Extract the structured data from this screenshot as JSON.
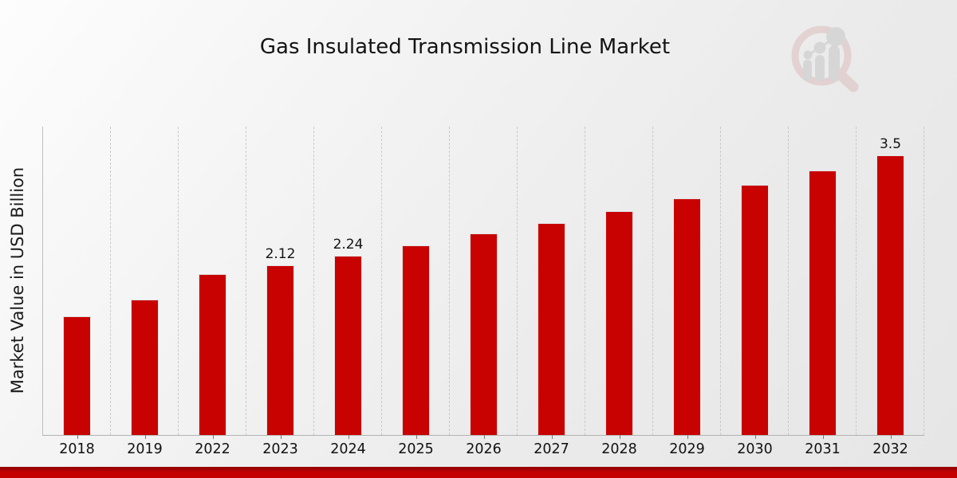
{
  "page": {
    "background_start": "#fdfdfd",
    "background_end": "#e6e6e6"
  },
  "branding": {
    "logo_name": "magnifier-growth-chart-watermark",
    "ring_color": "#ddbdbd",
    "bars_color": "#c6c6c6"
  },
  "chart_data": {
    "type": "bar",
    "title": "Gas Insulated Transmission Line Market",
    "xlabel": "",
    "ylabel": "Market Value in USD Billion",
    "categories": [
      "2018",
      "2019",
      "2022",
      "2023",
      "2024",
      "2025",
      "2026",
      "2027",
      "2028",
      "2029",
      "2030",
      "2031",
      "2032"
    ],
    "values": [
      1.49,
      1.7,
      2.01,
      2.12,
      2.24,
      2.37,
      2.52,
      2.65,
      2.8,
      2.96,
      3.13,
      3.31,
      3.5
    ],
    "data_labels": [
      "",
      "",
      "",
      "2.12",
      "2.24",
      "",
      "",
      "",
      "",
      "",
      "",
      "",
      "3.5"
    ],
    "bar_color": "#c80101",
    "ylim": [
      0,
      3.86
    ],
    "grid": "vertical dashed gridlines at category boundaries",
    "legend": "none"
  },
  "footer": {
    "accent_bar_color": "#c40000",
    "accent_bar_dark_edge": "#8e0000"
  }
}
